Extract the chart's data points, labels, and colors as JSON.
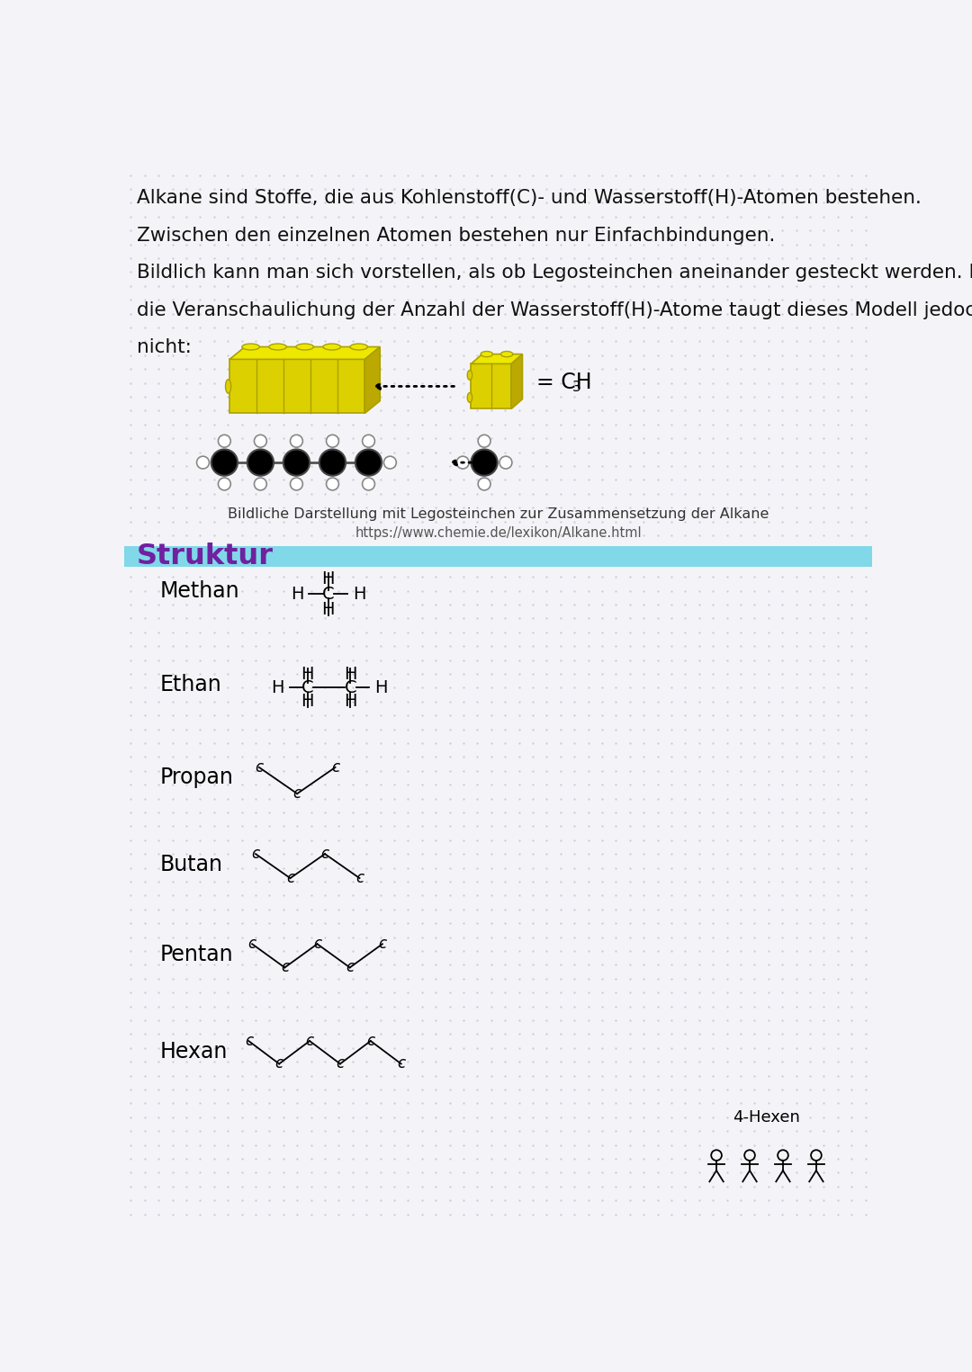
{
  "bg_color": "#f4f4f8",
  "dot_color": "#c8c8d8",
  "text_color": "#111111",
  "intro_lines": [
    "Alkane sind Stoffe, die aus Kohlenstoff(C)- und Wasserstoff(H)-Atomen bestehen.",
    "Zwischen den einzelnen Atomen bestehen nur Einfachbindungen.",
    "Bildlich kann man sich vorstellen, als ob Legosteinchen aneinander gesteckt werden. Für",
    "die Veranschaulichung der Anzahl der Wasserstoff(H)-Atome taugt dieses Modell jedoch",
    "nicht:"
  ],
  "caption1": "Bildliche Darstellung mit Legosteinchen zur Zusammensetzung der Alkane",
  "caption2": "https://www.chemie.de/lexikon/Alkane.html",
  "struktur_label": "Struktur",
  "struktur_color": "#7020a0",
  "struktur_bar_color": "#80d8e8",
  "lego_yellow": "#ddd000",
  "lego_yellow_top": "#eee800",
  "lego_yellow_side": "#aaa000",
  "molecules": [
    "Methan",
    "Ethan",
    "Propan",
    "Butan",
    "Pentan",
    "Hexan"
  ],
  "note_label": "4-Hexen"
}
